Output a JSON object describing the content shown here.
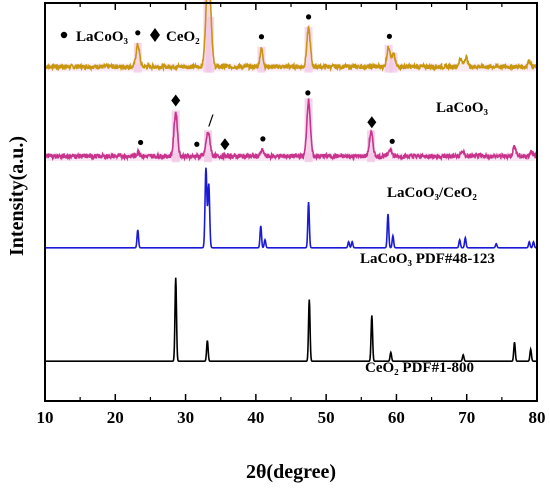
{
  "chart_data": {
    "type": "line",
    "xlabel": "2θ(degree)",
    "ylabel": "Intensity(a.u.)",
    "xlim": [
      10,
      80
    ],
    "xticks": [
      "10",
      "20",
      "30",
      "40",
      "50",
      "60",
      "70",
      "80"
    ],
    "yticks_shown": false,
    "legend": {
      "placement": "top-left",
      "items": [
        {
          "symbol": "•",
          "label": "LaCoO₃"
        },
        {
          "symbol": "♦",
          "label": "CeO₂"
        }
      ]
    },
    "annotation_slash": "/",
    "series": [
      {
        "name": "LaCoO₃",
        "color": "#c8960f",
        "highlight": "#f2c6e6",
        "baseline": 0.84,
        "noise": 0.006,
        "peaks": [
          {
            "x": 23.2,
            "h": 0.055,
            "w": 0.35
          },
          {
            "x": 33.1,
            "h": 0.17,
            "w": 0.4
          },
          {
            "x": 33.5,
            "h": 0.12,
            "w": 0.35
          },
          {
            "x": 40.8,
            "h": 0.045,
            "w": 0.3
          },
          {
            "x": 47.5,
            "h": 0.095,
            "w": 0.35
          },
          {
            "x": 58.9,
            "h": 0.05,
            "w": 0.35
          },
          {
            "x": 59.6,
            "h": 0.03,
            "w": 0.3
          },
          {
            "x": 69.1,
            "h": 0.02,
            "w": 0.3
          },
          {
            "x": 69.9,
            "h": 0.025,
            "w": 0.3
          },
          {
            "x": 78.9,
            "h": 0.015,
            "w": 0.3
          }
        ],
        "markers": [
          {
            "x": 23.2,
            "symbol": "•"
          },
          {
            "x": 33.2,
            "symbol": "•"
          },
          {
            "x": 40.8,
            "symbol": "•"
          },
          {
            "x": 47.5,
            "symbol": "•"
          },
          {
            "x": 59.0,
            "symbol": "•"
          }
        ]
      },
      {
        "name": "LaCoO₃/CeO₂",
        "color": "#c8338c",
        "highlight": "#f0c0e2",
        "baseline": 0.615,
        "noise": 0.006,
        "peaks": [
          {
            "x": 23.3,
            "h": 0.012,
            "w": 0.3
          },
          {
            "x": 28.6,
            "h": 0.11,
            "w": 0.35
          },
          {
            "x": 33.2,
            "h": 0.06,
            "w": 0.4
          },
          {
            "x": 40.9,
            "h": 0.015,
            "w": 0.3
          },
          {
            "x": 47.5,
            "h": 0.14,
            "w": 0.35
          },
          {
            "x": 56.4,
            "h": 0.06,
            "w": 0.35
          },
          {
            "x": 59.1,
            "h": 0.02,
            "w": 0.3
          },
          {
            "x": 69.4,
            "h": 0.012,
            "w": 0.3
          },
          {
            "x": 76.8,
            "h": 0.025,
            "w": 0.3
          },
          {
            "x": 79.2,
            "h": 0.012,
            "w": 0.3
          }
        ],
        "markers": [
          {
            "x": 23.6,
            "symbol": "•"
          },
          {
            "x": 28.6,
            "symbol": "♦"
          },
          {
            "x": 31.6,
            "symbol": "•"
          },
          {
            "x": 35.6,
            "symbol": "♦"
          },
          {
            "x": 41.0,
            "symbol": "•"
          },
          {
            "x": 47.4,
            "symbol": "•"
          },
          {
            "x": 56.5,
            "symbol": "♦"
          },
          {
            "x": 59.4,
            "symbol": "•"
          }
        ]
      },
      {
        "name": "LaCoO₃ PDF#48-123",
        "color": "#1a1ad6",
        "baseline": 0.385,
        "noise": 0,
        "peaks": [
          {
            "x": 23.2,
            "h": 0.045,
            "w": 0.15
          },
          {
            "x": 32.9,
            "h": 0.2,
            "w": 0.18
          },
          {
            "x": 33.3,
            "h": 0.16,
            "w": 0.18
          },
          {
            "x": 40.7,
            "h": 0.055,
            "w": 0.15
          },
          {
            "x": 41.3,
            "h": 0.02,
            "w": 0.15
          },
          {
            "x": 47.5,
            "h": 0.115,
            "w": 0.15
          },
          {
            "x": 53.2,
            "h": 0.015,
            "w": 0.15
          },
          {
            "x": 53.7,
            "h": 0.015,
            "w": 0.15
          },
          {
            "x": 58.8,
            "h": 0.085,
            "w": 0.15
          },
          {
            "x": 59.5,
            "h": 0.03,
            "w": 0.15
          },
          {
            "x": 69.0,
            "h": 0.02,
            "w": 0.15
          },
          {
            "x": 69.8,
            "h": 0.025,
            "w": 0.15
          },
          {
            "x": 74.2,
            "h": 0.01,
            "w": 0.15
          },
          {
            "x": 78.9,
            "h": 0.015,
            "w": 0.15
          },
          {
            "x": 79.5,
            "h": 0.015,
            "w": 0.15
          }
        ]
      },
      {
        "name": "CeO₂ PDF#1-800",
        "color": "#000000",
        "baseline": 0.1,
        "noise": 0,
        "peaks": [
          {
            "x": 28.6,
            "h": 0.21,
            "w": 0.15
          },
          {
            "x": 33.1,
            "h": 0.052,
            "w": 0.15
          },
          {
            "x": 47.6,
            "h": 0.155,
            "w": 0.15
          },
          {
            "x": 56.5,
            "h": 0.115,
            "w": 0.15
          },
          {
            "x": 59.2,
            "h": 0.022,
            "w": 0.15
          },
          {
            "x": 69.5,
            "h": 0.016,
            "w": 0.15
          },
          {
            "x": 76.8,
            "h": 0.048,
            "w": 0.15
          },
          {
            "x": 79.1,
            "h": 0.03,
            "w": 0.15
          }
        ]
      }
    ]
  }
}
